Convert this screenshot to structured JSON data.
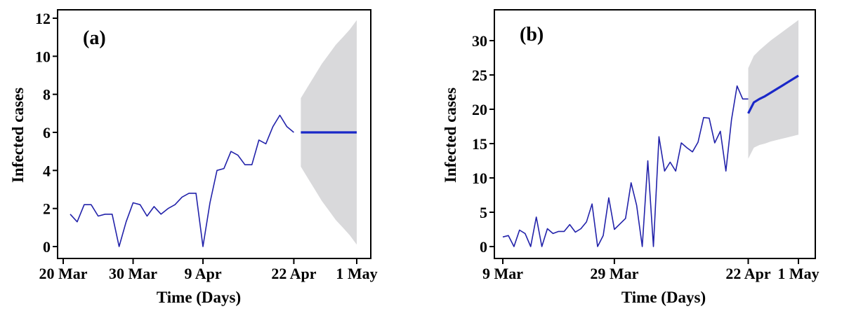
{
  "chart_data": [
    {
      "type": "line",
      "panel_label": "(a)",
      "xlabel": "Time (Days)",
      "ylabel": "Infected cases",
      "ylim": [
        0,
        12
      ],
      "yticks": [
        0,
        2,
        4,
        6,
        8,
        10,
        12
      ],
      "xlim": [
        "2020-03-18",
        "2020-05-01"
      ],
      "xticks": [
        {
          "date": "2020-03-20",
          "label": "20 Mar"
        },
        {
          "date": "2020-03-30",
          "label": "30 Mar"
        },
        {
          "date": "2020-04-09",
          "label": "9 Apr"
        },
        {
          "date": "2020-04-22",
          "label": "22 Apr"
        },
        {
          "date": "2020-05-01",
          "label": "1 May"
        }
      ],
      "observed": {
        "color": "#2222aa",
        "x": [
          "2020-03-21",
          "2020-03-22",
          "2020-03-23",
          "2020-03-24",
          "2020-03-25",
          "2020-03-26",
          "2020-03-27",
          "2020-03-28",
          "2020-03-29",
          "2020-03-30",
          "2020-03-31",
          "2020-04-01",
          "2020-04-02",
          "2020-04-03",
          "2020-04-04",
          "2020-04-05",
          "2020-04-06",
          "2020-04-07",
          "2020-04-08",
          "2020-04-09",
          "2020-04-10",
          "2020-04-11",
          "2020-04-12",
          "2020-04-13",
          "2020-04-14",
          "2020-04-15",
          "2020-04-16",
          "2020-04-17",
          "2020-04-18",
          "2020-04-19",
          "2020-04-20",
          "2020-04-21",
          "2020-04-22"
        ],
        "y": [
          1.7,
          1.3,
          2.2,
          2.2,
          1.6,
          1.7,
          1.7,
          0.0,
          1.3,
          2.3,
          2.2,
          1.6,
          2.1,
          1.7,
          2.0,
          2.2,
          2.6,
          2.8,
          2.8,
          0.0,
          2.3,
          4.0,
          4.1,
          5.0,
          4.8,
          4.3,
          4.3,
          5.6,
          5.4,
          6.3,
          6.9,
          6.3,
          6.0
        ]
      },
      "forecast": {
        "color": "#1a28c8",
        "band_color": "#d9d9db",
        "x": [
          "2020-04-23",
          "2020-04-24",
          "2020-04-25",
          "2020-04-26",
          "2020-04-27",
          "2020-04-28",
          "2020-04-29",
          "2020-04-30",
          "2020-05-01"
        ],
        "y": [
          6.0,
          6.0,
          6.0,
          6.0,
          6.0,
          6.0,
          6.0,
          6.0,
          6.0
        ],
        "upper": [
          7.8,
          8.4,
          9.0,
          9.6,
          10.1,
          10.6,
          11.0,
          11.4,
          11.9
        ],
        "lower": [
          4.2,
          3.6,
          3.0,
          2.4,
          1.9,
          1.4,
          1.0,
          0.6,
          0.1
        ]
      }
    },
    {
      "type": "line",
      "panel_label": "(b)",
      "xlabel": "Time (Days)",
      "ylabel": "Infected cases",
      "ylim": [
        0,
        33
      ],
      "yticks": [
        0,
        5,
        10,
        15,
        20,
        25,
        30
      ],
      "xlim": [
        "2020-03-09",
        "2020-05-01"
      ],
      "xticks": [
        {
          "date": "2020-03-09",
          "label": "9 Mar"
        },
        {
          "date": "2020-03-29",
          "label": "29 Mar"
        },
        {
          "date": "2020-04-22",
          "label": "22 Apr"
        },
        {
          "date": "2020-05-01",
          "label": "1 May"
        }
      ],
      "observed": {
        "color": "#2222aa",
        "x": [
          "2020-03-09",
          "2020-03-10",
          "2020-03-11",
          "2020-03-12",
          "2020-03-13",
          "2020-03-14",
          "2020-03-15",
          "2020-03-16",
          "2020-03-17",
          "2020-03-18",
          "2020-03-19",
          "2020-03-20",
          "2020-03-21",
          "2020-03-22",
          "2020-03-23",
          "2020-03-24",
          "2020-03-25",
          "2020-03-26",
          "2020-03-27",
          "2020-03-28",
          "2020-03-29",
          "2020-03-30",
          "2020-03-31",
          "2020-04-01",
          "2020-04-02",
          "2020-04-03",
          "2020-04-04",
          "2020-04-05",
          "2020-04-06",
          "2020-04-07",
          "2020-04-08",
          "2020-04-09",
          "2020-04-10",
          "2020-04-11",
          "2020-04-12",
          "2020-04-13",
          "2020-04-14",
          "2020-04-15",
          "2020-04-16",
          "2020-04-17",
          "2020-04-18",
          "2020-04-19",
          "2020-04-20",
          "2020-04-21",
          "2020-04-22"
        ],
        "y": [
          1.4,
          1.6,
          0.0,
          2.4,
          1.9,
          0.0,
          4.3,
          0.0,
          2.6,
          1.9,
          2.2,
          2.2,
          3.2,
          2.1,
          2.6,
          3.6,
          6.2,
          0.0,
          1.6,
          7.1,
          2.5,
          3.3,
          4.1,
          9.3,
          6.0,
          0.0,
          12.5,
          0.0,
          16.0,
          11.0,
          12.3,
          11.0,
          15.1,
          14.4,
          13.8,
          15.2,
          18.8,
          18.7,
          15.1,
          16.8,
          11.0,
          18.5,
          23.4,
          21.5,
          21.5
        ]
      },
      "forecast": {
        "color": "#1a28c8",
        "band_color": "#d9d9db",
        "x": [
          "2020-04-22",
          "2020-04-23",
          "2020-04-24",
          "2020-04-25",
          "2020-04-26",
          "2020-04-27",
          "2020-04-28",
          "2020-04-29",
          "2020-04-30",
          "2020-05-01"
        ],
        "y": [
          19.4,
          21.0,
          21.5,
          21.9,
          22.4,
          22.9,
          23.4,
          23.9,
          24.4,
          24.9
        ],
        "upper": [
          26.0,
          27.8,
          28.6,
          29.3,
          30.0,
          30.6,
          31.2,
          31.8,
          32.4,
          33.0
        ],
        "lower": [
          12.8,
          14.4,
          14.8,
          15.0,
          15.3,
          15.5,
          15.7,
          15.9,
          16.1,
          16.3
        ]
      }
    }
  ]
}
